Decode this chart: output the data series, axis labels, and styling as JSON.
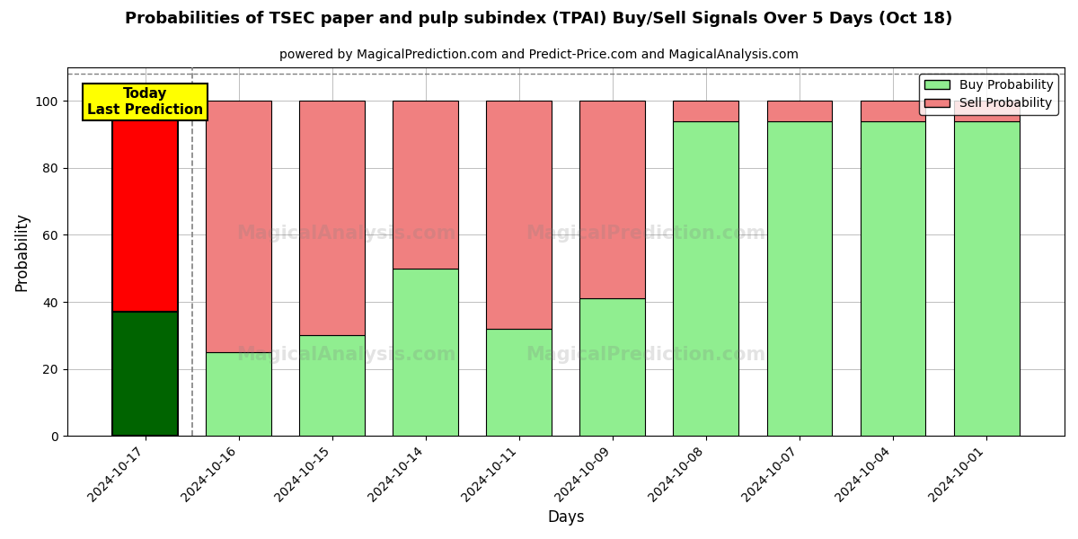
{
  "title": "Probabilities of TSEC paper and pulp subindex (TPAI) Buy/Sell Signals Over 5 Days (Oct 18)",
  "subtitle": "powered by MagicalPrediction.com and Predict-Price.com and MagicalAnalysis.com",
  "xlabel": "Days",
  "ylabel": "Probability",
  "dates": [
    "2024-10-17",
    "2024-10-16",
    "2024-10-15",
    "2024-10-14",
    "2024-10-11",
    "2024-10-09",
    "2024-10-08",
    "2024-10-07",
    "2024-10-04",
    "2024-10-01"
  ],
  "buy_values": [
    37,
    25,
    30,
    50,
    32,
    41,
    94,
    94,
    94,
    94
  ],
  "sell_values": [
    63,
    75,
    70,
    50,
    68,
    59,
    6,
    6,
    6,
    6
  ],
  "today_buy_color": "#006400",
  "today_sell_color": "#ff0000",
  "other_buy_color": "#90ee90",
  "other_sell_color": "#f08080",
  "today_label_bg": "#ffff00",
  "today_annotation": "Today\nLast Prediction",
  "ylim": [
    0,
    110
  ],
  "watermark_texts": [
    "MagicalAnalysis.com",
    "MagicalPrediction.com"
  ],
  "figsize": [
    12,
    6
  ],
  "dpi": 100,
  "bar_width": 0.7,
  "legend_buy_label": "Buy Probability",
  "legend_sell_label": "Sell Probability"
}
